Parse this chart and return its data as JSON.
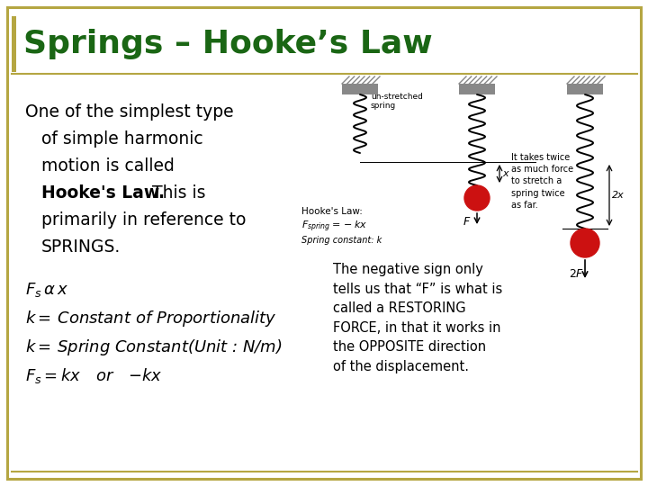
{
  "background_color": "#ffffff",
  "border_color": "#b5a642",
  "title": "Springs – Hooke’s Law",
  "title_color": "#1a6614",
  "title_fontsize": 26,
  "body_fontsize": 13.5,
  "formula_fontsize": 13,
  "note_fontsize": 10.5,
  "note_text": "The negative sign only\ntells us that “F” is what is\ncalled a RESTORING\nFORCE, in that it works in\nthe OPPOSITE direction\nof the displacement.",
  "diagram_label_text": "It takes twice\nas much force\nto stretch a\nspring twice\nas far.",
  "hookes_law_label": "Hooke's Law:",
  "spring_formula": "$F_{spring} = -kx$",
  "spring_constant_label": "Spring constant: k",
  "unstretched_label": "un-stretched\nspring"
}
